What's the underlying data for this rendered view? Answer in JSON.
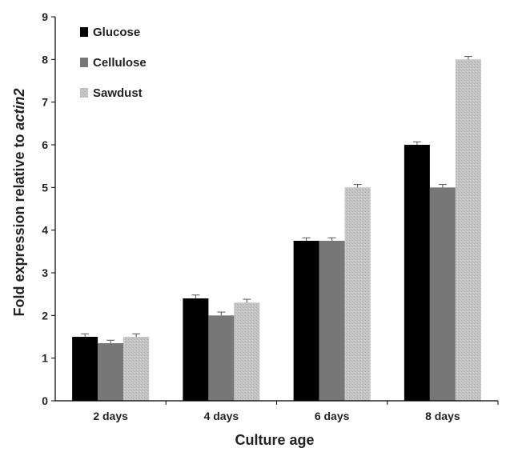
{
  "chart_data": {
    "type": "bar",
    "title": "",
    "xlabel": "Culture age",
    "ylabel_prefix": "Fold expression relative to ",
    "ylabel_italic": "actin2",
    "categories": [
      "2 days",
      "4 days",
      "6 days",
      "8 days"
    ],
    "series": [
      {
        "name": "Glucose",
        "values": [
          1.5,
          2.4,
          3.75,
          6.0
        ],
        "errors": [
          0.07,
          0.08,
          0.07,
          0.07
        ],
        "color": "#000000",
        "pattern": "solid"
      },
      {
        "name": "Cellulose",
        "values": [
          1.35,
          2.0,
          3.75,
          5.0
        ],
        "errors": [
          0.07,
          0.08,
          0.07,
          0.07
        ],
        "color": "#777777",
        "pattern": "solid"
      },
      {
        "name": "Sawdust",
        "values": [
          1.5,
          2.3,
          5.0,
          8.0
        ],
        "errors": [
          0.07,
          0.08,
          0.07,
          0.07
        ],
        "color": "#bdbdbd",
        "pattern": "stipple"
      }
    ],
    "ylim": [
      0,
      9
    ],
    "yticks": [
      "0",
      "1",
      "2",
      "3",
      "4",
      "5",
      "6",
      "7",
      "8",
      "9"
    ],
    "legend_position": "top-left",
    "grid": false
  }
}
